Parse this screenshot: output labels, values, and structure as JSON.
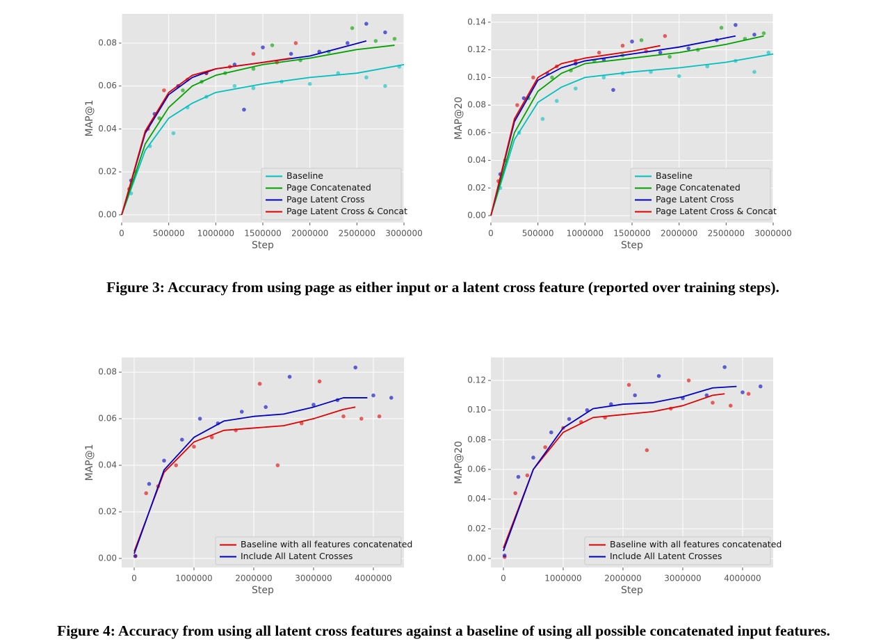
{
  "chart_data": [
    {
      "type": "scatter",
      "x_label": "Step",
      "y_label": "MAP@1",
      "grid": true,
      "legend": "lower right",
      "xlim": [
        0,
        3000000
      ],
      "xticks": [
        0,
        500000,
        1000000,
        1500000,
        2000000,
        2500000,
        3000000
      ],
      "ylim": [
        -0.0036,
        0.0936
      ],
      "yticks": [
        {
          "value": 0,
          "label": "0.00"
        },
        0.02,
        0.04,
        0.06,
        0.08
      ],
      "series": [
        {
          "name": "Baseline",
          "color": "#00bfbf",
          "x": [
            0,
            250000,
            500000,
            750000,
            1000000,
            1500000,
            2000000,
            2500000,
            3000000
          ],
          "values": [
            0,
            0.03,
            0.045,
            0.052,
            0.057,
            0.061,
            0.064,
            0.066,
            0.07
          ],
          "points": {
            "x": [
              100000,
              300000,
              550000,
              700000,
              900000,
              1200000,
              1400000,
              1700000,
              2000000,
              2300000,
              2600000,
              2800000,
              2950000
            ],
            "values": [
              0.01,
              0.032,
              0.038,
              0.05,
              0.055,
              0.06,
              0.059,
              0.062,
              0.061,
              0.066,
              0.064,
              0.06,
              0.069
            ]
          }
        },
        {
          "name": "Page Concatenated",
          "color": "#00a000",
          "x": [
            0,
            250000,
            500000,
            750000,
            1000000,
            1500000,
            2000000,
            2500000,
            2900000
          ],
          "values": [
            0,
            0.033,
            0.05,
            0.06,
            0.065,
            0.07,
            0.073,
            0.077,
            0.079
          ],
          "points": {
            "x": [
              150000,
              400000,
              650000,
              850000,
              1100000,
              1400000,
              1600000,
              1900000,
              2200000,
              2450000,
              2700000,
              2900000
            ],
            "values": [
              0.02,
              0.045,
              0.058,
              0.062,
              0.066,
              0.068,
              0.079,
              0.072,
              0.076,
              0.087,
              0.081,
              0.082
            ]
          }
        },
        {
          "name": "Page Latent Cross",
          "color": "#0000c0",
          "x": [
            0,
            250000,
            500000,
            750000,
            1000000,
            1500000,
            2000000,
            2600000
          ],
          "values": [
            0,
            0.038,
            0.056,
            0.064,
            0.068,
            0.071,
            0.074,
            0.081
          ],
          "points": {
            "x": [
              100000,
              350000,
              600000,
              900000,
              1200000,
              1300000,
              1500000,
              1800000,
              2100000,
              2400000,
              2600000,
              2800000
            ],
            "values": [
              0.016,
              0.047,
              0.06,
              0.066,
              0.07,
              0.049,
              0.078,
              0.075,
              0.076,
              0.08,
              0.089,
              0.085
            ]
          }
        },
        {
          "name": "Page Latent Cross & Concat",
          "color": "#e00000",
          "x": [
            0,
            250000,
            500000,
            750000,
            1000000,
            1500000,
            1800000
          ],
          "values": [
            0,
            0.039,
            0.057,
            0.065,
            0.068,
            0.071,
            0.073
          ],
          "points": {
            "x": [
              80000,
              280000,
              450000,
              700000,
              900000,
              1150000,
              1400000,
              1650000,
              1850000
            ],
            "values": [
              0.012,
              0.04,
              0.058,
              0.063,
              0.066,
              0.069,
              0.075,
              0.071,
              0.08
            ]
          }
        }
      ]
    },
    {
      "type": "scatter",
      "x_label": "Step",
      "y_label": "MAP@20",
      "grid": true,
      "legend": "lower right",
      "xlim": [
        0,
        3000000
      ],
      "xticks": [
        0,
        500000,
        1000000,
        1500000,
        2000000,
        2500000,
        3000000
      ],
      "ylim": [
        -0.005,
        0.146
      ],
      "yticks": [
        {
          "value": 0,
          "label": "0.00"
        },
        0.02,
        0.04,
        0.06,
        0.08,
        {
          "value": 0.1,
          "label": "0.10"
        },
        0.12,
        0.14
      ],
      "series": [
        {
          "name": "Baseline",
          "color": "#00bfbf",
          "x": [
            0,
            250000,
            500000,
            750000,
            1000000,
            1500000,
            2000000,
            2500000,
            3000000
          ],
          "values": [
            0,
            0.055,
            0.082,
            0.093,
            0.1,
            0.104,
            0.107,
            0.111,
            0.117
          ],
          "points": {
            "x": [
              100000,
              300000,
              550000,
              700000,
              900000,
              1200000,
              1400000,
              1700000,
              2000000,
              2300000,
              2600000,
              2800000,
              2950000
            ],
            "values": [
              0.02,
              0.06,
              0.07,
              0.083,
              0.092,
              0.1,
              0.103,
              0.104,
              0.101,
              0.108,
              0.112,
              0.104,
              0.118
            ]
          }
        },
        {
          "name": "Page Concatenated",
          "color": "#00a000",
          "x": [
            0,
            250000,
            500000,
            750000,
            1000000,
            1500000,
            2000000,
            2500000,
            2900000
          ],
          "values": [
            0,
            0.06,
            0.09,
            0.103,
            0.11,
            0.114,
            0.118,
            0.124,
            0.13
          ],
          "points": {
            "x": [
              150000,
              400000,
              650000,
              850000,
              1100000,
              1400000,
              1600000,
              1900000,
              2200000,
              2450000,
              2700000,
              2900000
            ],
            "values": [
              0.04,
              0.085,
              0.1,
              0.105,
              0.112,
              0.116,
              0.127,
              0.115,
              0.12,
              0.136,
              0.128,
              0.132
            ]
          }
        },
        {
          "name": "Page Latent Cross",
          "color": "#0000c0",
          "x": [
            0,
            250000,
            500000,
            750000,
            1000000,
            1500000,
            2000000,
            2600000
          ],
          "values": [
            0,
            0.068,
            0.098,
            0.107,
            0.112,
            0.117,
            0.122,
            0.13
          ],
          "points": {
            "x": [
              100000,
              350000,
              600000,
              900000,
              1200000,
              1300000,
              1500000,
              1800000,
              2100000,
              2400000,
              2600000,
              2800000
            ],
            "values": [
              0.03,
              0.085,
              0.103,
              0.11,
              0.113,
              0.091,
              0.126,
              0.118,
              0.121,
              0.127,
              0.138,
              0.131
            ]
          }
        },
        {
          "name": "Page Latent Cross & Concat",
          "color": "#e00000",
          "x": [
            0,
            250000,
            500000,
            750000,
            1000000,
            1500000,
            1800000
          ],
          "values": [
            0,
            0.07,
            0.1,
            0.11,
            0.114,
            0.119,
            0.123
          ],
          "points": {
            "x": [
              80000,
              280000,
              450000,
              700000,
              900000,
              1150000,
              1400000,
              1650000,
              1850000
            ],
            "values": [
              0.025,
              0.08,
              0.1,
              0.108,
              0.112,
              0.118,
              0.123,
              0.119,
              0.13
            ]
          }
        }
      ]
    },
    {
      "type": "scatter",
      "x_label": "Step",
      "y_label": "MAP@1",
      "grid": true,
      "legend": "lower right",
      "xlim": [
        -209000,
        4512000
      ],
      "xticks": [
        0,
        1000000,
        2000000,
        3000000,
        4000000
      ],
      "ylim": [
        -0.0039,
        0.0863
      ],
      "yticks": [
        {
          "value": 0,
          "label": "0.00"
        },
        0.02,
        0.04,
        0.06,
        0.08
      ],
      "series": [
        {
          "name": "Baseline with all features concatenated",
          "color": "#e00000",
          "x": [
            0,
            500000,
            1000000,
            1500000,
            2000000,
            2500000,
            3000000,
            3500000,
            3700000
          ],
          "values": [
            0.003,
            0.037,
            0.05,
            0.055,
            0.056,
            0.057,
            0.06,
            0.064,
            0.065
          ],
          "points": {
            "x": [
              20000,
              200000,
              400000,
              700000,
              1000000,
              1300000,
              1700000,
              2100000,
              2400000,
              2800000,
              3100000,
              3500000,
              3800000,
              4100000
            ],
            "values": [
              0.001,
              0.028,
              0.031,
              0.04,
              0.048,
              0.052,
              0.055,
              0.075,
              0.04,
              0.058,
              0.076,
              0.061,
              0.06,
              0.061
            ]
          }
        },
        {
          "name": "Include All Latent Crosses",
          "color": "#0000c0",
          "x": [
            0,
            500000,
            1000000,
            1500000,
            2000000,
            2500000,
            3000000,
            3500000,
            3900000
          ],
          "values": [
            0.002,
            0.038,
            0.052,
            0.059,
            0.061,
            0.062,
            0.065,
            0.069,
            0.069
          ],
          "points": {
            "x": [
              20000,
              250000,
              500000,
              800000,
              1100000,
              1400000,
              1800000,
              2200000,
              2600000,
              3000000,
              3400000,
              3700000,
              4000000,
              4300000
            ],
            "values": [
              0.001,
              0.032,
              0.042,
              0.051,
              0.06,
              0.058,
              0.063,
              0.065,
              0.078,
              0.066,
              0.068,
              0.082,
              0.07,
              0.069
            ]
          }
        }
      ]
    },
    {
      "type": "scatter",
      "x_label": "Step",
      "y_label": "MAP@20",
      "grid": true,
      "legend": "lower right",
      "xlim": [
        -209000,
        4512000
      ],
      "xticks": [
        0,
        1000000,
        2000000,
        3000000,
        4000000
      ],
      "ylim": [
        -0.0061,
        0.1355
      ],
      "yticks": [
        {
          "value": 0,
          "label": "0.00"
        },
        0.02,
        0.04,
        0.06,
        0.08,
        {
          "value": 0.1,
          "label": "0.10"
        },
        0.12
      ],
      "series": [
        {
          "name": "Baseline with all features concatenated",
          "color": "#e00000",
          "x": [
            0,
            500000,
            1000000,
            1500000,
            2000000,
            2500000,
            3000000,
            3500000,
            3700000
          ],
          "values": [
            0.007,
            0.06,
            0.085,
            0.095,
            0.097,
            0.099,
            0.103,
            0.11,
            0.111
          ],
          "points": {
            "x": [
              20000,
              200000,
              400000,
              700000,
              1000000,
              1300000,
              1700000,
              2100000,
              2400000,
              2800000,
              3100000,
              3500000,
              3800000,
              4100000
            ],
            "values": [
              0.001,
              0.044,
              0.056,
              0.075,
              0.088,
              0.092,
              0.095,
              0.117,
              0.073,
              0.101,
              0.12,
              0.105,
              0.103,
              0.111
            ]
          }
        },
        {
          "name": "Include All Latent Crosses",
          "color": "#0000c0",
          "x": [
            0,
            500000,
            1000000,
            1500000,
            2000000,
            2500000,
            3000000,
            3500000,
            3900000
          ],
          "values": [
            0.005,
            0.06,
            0.088,
            0.101,
            0.104,
            0.105,
            0.109,
            0.115,
            0.116
          ],
          "points": {
            "x": [
              20000,
              250000,
              500000,
              800000,
              1100000,
              1400000,
              1800000,
              2200000,
              2600000,
              3000000,
              3400000,
              3700000,
              4000000,
              4300000
            ],
            "values": [
              0.002,
              0.055,
              0.068,
              0.085,
              0.094,
              0.1,
              0.104,
              0.11,
              0.123,
              0.108,
              0.11,
              0.129,
              0.112,
              0.116
            ]
          }
        }
      ]
    }
  ],
  "captions": [
    "Figure 3: Accuracy from using page as either input or a latent cross feature (reported over training steps).",
    "Figure 4: Accuracy from using all latent cross features against a baseline of using all possible concatenated input features."
  ]
}
